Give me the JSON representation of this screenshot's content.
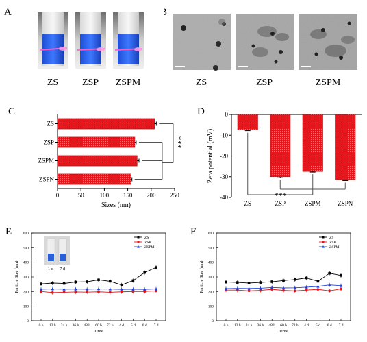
{
  "panels": {
    "A": {
      "letter": "A",
      "labels": [
        "ZS",
        "ZSP",
        "ZSPM"
      ]
    },
    "B": {
      "letter": "B",
      "labels": [
        "ZS",
        "ZSP",
        "ZSPM"
      ]
    }
  },
  "chart_data": [
    {
      "panel": "C",
      "type": "bar",
      "orientation": "horizontal",
      "categories": [
        "ZS",
        "ZSP",
        "ZSPM",
        "ZSPN"
      ],
      "values": [
        207,
        165,
        170,
        157
      ],
      "errors": [
        4,
        3,
        4,
        2
      ],
      "xlabel": "Sizes (nm)",
      "xlim": [
        0,
        250
      ],
      "xticks": [
        0,
        50,
        100,
        150,
        200,
        250
      ],
      "significance": "***",
      "colors": {
        "bar": "#e8141c",
        "edge": "#b00000"
      }
    },
    {
      "panel": "D",
      "type": "bar",
      "categories": [
        "ZS",
        "ZSP",
        "ZSPM",
        "ZSPN"
      ],
      "values": [
        -7.5,
        -30,
        -27.5,
        -31.5
      ],
      "errors": [
        0.3,
        0.5,
        0.3,
        0.4
      ],
      "ylabel": "Zeta potential (mV)",
      "ylim": [
        -40,
        0
      ],
      "yticks": [
        0,
        -10,
        -20,
        -30,
        -40
      ],
      "significance": "***",
      "colors": {
        "bar": "#e8141c",
        "edge": "#b00000"
      }
    },
    {
      "panel": "E",
      "type": "line",
      "x": [
        "0 h",
        "12 h",
        "24 h",
        "36 h",
        "48 h",
        "60 h",
        "72 h",
        "4 d",
        "5 d",
        "6 d",
        "7 d"
      ],
      "xlabel": "Time",
      "ylabel": "Particle Size (nm)",
      "ylim": [
        0,
        600
      ],
      "yticks": [
        0,
        100,
        200,
        300,
        400,
        500,
        600
      ],
      "series": [
        {
          "name": "ZS",
          "color": "#000000",
          "marker": "square",
          "values": [
            252,
            258,
            255,
            265,
            267,
            280,
            270,
            245,
            275,
            330,
            365
          ]
        },
        {
          "name": "ZSP",
          "color": "#e8141c",
          "marker": "circle",
          "values": [
            200,
            193,
            195,
            197,
            196,
            198,
            195,
            198,
            200,
            200,
            205
          ]
        },
        {
          "name": "ZSPM",
          "color": "#1f3fd8",
          "marker": "triangle",
          "values": [
            216,
            218,
            216,
            217,
            216,
            218,
            217,
            215,
            216,
            215,
            218
          ]
        }
      ],
      "inset_labels": [
        "1 d",
        "7 d"
      ]
    },
    {
      "panel": "F",
      "type": "line",
      "x": [
        "0 h",
        "12 h",
        "24 h",
        "36 h",
        "48 h",
        "60 h",
        "72 h",
        "4 d",
        "5 d",
        "6 d",
        "7 d"
      ],
      "xlabel": "Time",
      "ylabel": "Particle Size (nm)",
      "ylim": [
        0,
        600
      ],
      "yticks": [
        0,
        100,
        200,
        300,
        400,
        500,
        600
      ],
      "series": [
        {
          "name": "ZS",
          "color": "#000000",
          "marker": "square",
          "values": [
            265,
            262,
            258,
            262,
            267,
            275,
            282,
            293,
            270,
            325,
            310
          ]
        },
        {
          "name": "ZSP",
          "color": "#e8141c",
          "marker": "circle",
          "values": [
            210,
            210,
            205,
            208,
            215,
            208,
            205,
            210,
            215,
            205,
            218
          ]
        },
        {
          "name": "ZSPM",
          "color": "#1f3fd8",
          "marker": "triangle",
          "values": [
            220,
            222,
            221,
            223,
            228,
            225,
            226,
            230,
            235,
            245,
            240
          ]
        }
      ]
    }
  ],
  "panel_letters": {
    "C": "C",
    "D": "D",
    "E": "E",
    "F": "F"
  }
}
